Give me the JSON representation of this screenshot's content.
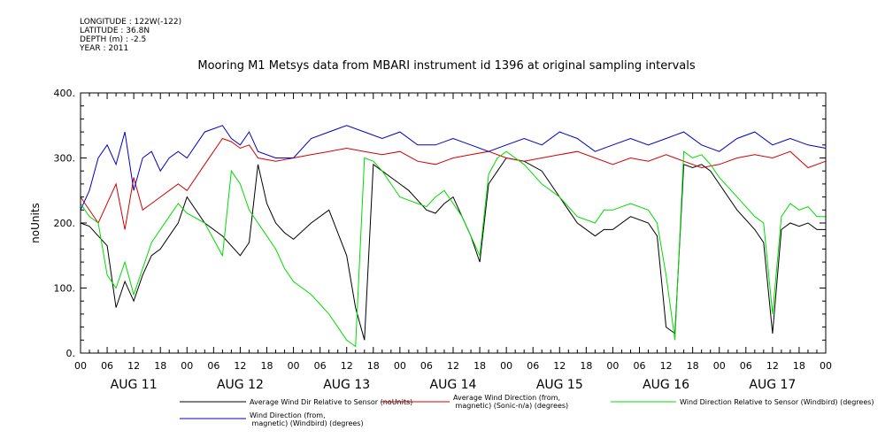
{
  "meta": {
    "longitude": "LONGITUDE : 122W(-122)",
    "latitude": "LATITUDE : 36.8N",
    "depth": "DEPTH (m) : -2.5",
    "year": "YEAR : 2011"
  },
  "chart_data": {
    "type": "line",
    "title": "Mooring M1 Metsys data from MBARI instrument id 1396 at original sampling intervals",
    "ylabel": "noUnits",
    "ylim": [
      0,
      400
    ],
    "yticks": [
      0,
      100,
      200,
      300,
      400
    ],
    "ytick_labels": [
      "0.",
      "100.",
      "200.",
      "300.",
      "400."
    ],
    "x_hours_range": [
      0,
      168
    ],
    "hour_tick_labels": [
      "00",
      "06",
      "12",
      "18",
      "00",
      "06",
      "12",
      "18",
      "00",
      "06",
      "12",
      "18",
      "00",
      "06",
      "12",
      "18",
      "00",
      "06",
      "12",
      "18",
      "00",
      "06",
      "12",
      "18",
      "00",
      "06",
      "12",
      "18",
      "00"
    ],
    "day_labels": [
      "AUG 11",
      "AUG 12",
      "AUG 13",
      "AUG 14",
      "AUG 15",
      "AUG 16",
      "AUG 17"
    ],
    "grid": false,
    "legend_placement": "bottom",
    "series": [
      {
        "name": "Average Wind Dir Relative to Sensor (noUnits)",
        "color": "#000000",
        "x": [
          0,
          2,
          4,
          6,
          8,
          10,
          12,
          14,
          16,
          18,
          20,
          22,
          24,
          28,
          32,
          36,
          38,
          40,
          42,
          44,
          46,
          48,
          52,
          56,
          60,
          62,
          64,
          66,
          68,
          70,
          72,
          74,
          76,
          78,
          80,
          82,
          84,
          86,
          88,
          90,
          92,
          94,
          96,
          100,
          104,
          108,
          112,
          116,
          118,
          120,
          124,
          128,
          130,
          132,
          134,
          136,
          138,
          140,
          142,
          144,
          148,
          152,
          154,
          156,
          158,
          160,
          162,
          164,
          166,
          168
        ],
        "y": [
          200,
          195,
          180,
          165,
          70,
          110,
          80,
          120,
          150,
          160,
          180,
          200,
          240,
          200,
          180,
          150,
          170,
          290,
          230,
          200,
          185,
          175,
          200,
          220,
          150,
          70,
          20,
          290,
          280,
          270,
          260,
          250,
          235,
          220,
          215,
          230,
          240,
          210,
          180,
          140,
          260,
          280,
          300,
          295,
          280,
          240,
          200,
          180,
          190,
          190,
          210,
          200,
          180,
          40,
          30,
          290,
          285,
          290,
          280,
          260,
          220,
          190,
          170,
          30,
          190,
          200,
          195,
          200,
          190,
          190
        ]
      },
      {
        "name": "Average Wind Direction (from, magnetic) (Sonic-n/a) (degrees)",
        "color": "#d20000",
        "x": [
          0,
          4,
          8,
          10,
          12,
          14,
          16,
          18,
          20,
          22,
          24,
          28,
          32,
          34,
          36,
          38,
          40,
          44,
          48,
          52,
          56,
          60,
          64,
          68,
          72,
          76,
          80,
          84,
          88,
          92,
          96,
          100,
          104,
          108,
          112,
          116,
          120,
          124,
          128,
          132,
          134,
          136,
          140,
          144,
          148,
          152,
          156,
          160,
          164,
          168
        ],
        "y": [
          240,
          200,
          260,
          190,
          270,
          220,
          230,
          240,
          250,
          260,
          250,
          290,
          330,
          325,
          315,
          320,
          300,
          295,
          300,
          305,
          310,
          315,
          310,
          305,
          310,
          295,
          290,
          300,
          305,
          310,
          300,
          295,
          300,
          305,
          310,
          300,
          290,
          300,
          295,
          305,
          300,
          295,
          285,
          290,
          300,
          305,
          300,
          310,
          285,
          295
        ]
      },
      {
        "name": "Wind Direction (from, magnetic) (Windbird) (degrees)",
        "color": "#0000c8",
        "x": [
          0,
          2,
          4,
          6,
          8,
          10,
          12,
          14,
          16,
          18,
          20,
          22,
          24,
          28,
          32,
          34,
          36,
          38,
          40,
          44,
          48,
          52,
          56,
          60,
          64,
          68,
          72,
          76,
          80,
          84,
          88,
          92,
          96,
          100,
          104,
          108,
          112,
          116,
          120,
          124,
          128,
          132,
          136,
          140,
          144,
          148,
          152,
          156,
          160,
          164,
          168
        ],
        "y": [
          220,
          250,
          300,
          320,
          290,
          340,
          250,
          300,
          310,
          280,
          300,
          310,
          300,
          340,
          350,
          330,
          320,
          340,
          310,
          300,
          300,
          330,
          340,
          350,
          340,
          330,
          340,
          320,
          320,
          330,
          320,
          310,
          320,
          330,
          320,
          340,
          330,
          310,
          320,
          330,
          320,
          330,
          340,
          320,
          310,
          330,
          340,
          320,
          330,
          320,
          315
        ]
      },
      {
        "name": "Wind Direction Relative to Sensor (Windbird) (degrees)",
        "color": "#00dc00",
        "x": [
          0,
          2,
          4,
          6,
          8,
          10,
          12,
          14,
          16,
          18,
          20,
          22,
          24,
          28,
          32,
          34,
          36,
          38,
          40,
          42,
          44,
          46,
          48,
          52,
          56,
          60,
          62,
          64,
          66,
          68,
          70,
          72,
          74,
          76,
          78,
          80,
          82,
          84,
          86,
          88,
          90,
          92,
          94,
          96,
          100,
          104,
          108,
          112,
          116,
          118,
          120,
          124,
          128,
          130,
          132,
          134,
          136,
          138,
          140,
          142,
          144,
          148,
          152,
          154,
          156,
          158,
          160,
          162,
          164,
          166,
          168
        ],
        "y": [
          230,
          210,
          200,
          120,
          100,
          140,
          90,
          130,
          170,
          190,
          210,
          230,
          215,
          200,
          150,
          280,
          260,
          220,
          200,
          180,
          160,
          130,
          110,
          90,
          60,
          20,
          10,
          300,
          295,
          280,
          260,
          240,
          235,
          230,
          225,
          240,
          250,
          230,
          210,
          180,
          150,
          275,
          300,
          310,
          290,
          260,
          240,
          210,
          200,
          220,
          220,
          230,
          220,
          200,
          120,
          20,
          310,
          300,
          305,
          290,
          270,
          240,
          210,
          200,
          60,
          210,
          230,
          220,
          225,
          210,
          210
        ]
      }
    ]
  }
}
